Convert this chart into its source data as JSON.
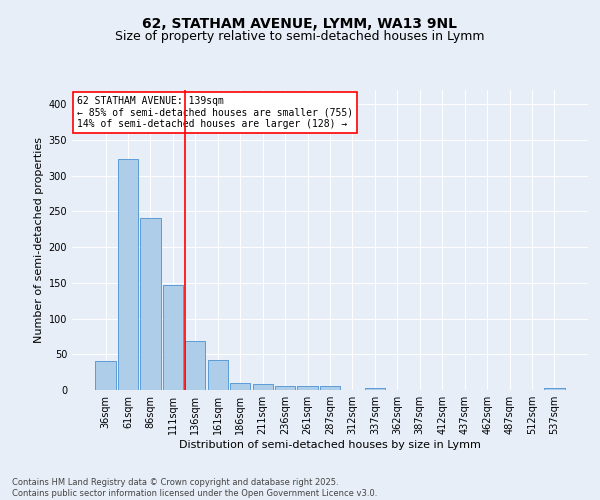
{
  "title_line1": "62, STATHAM AVENUE, LYMM, WA13 9NL",
  "title_line2": "Size of property relative to semi-detached houses in Lymm",
  "xlabel": "Distribution of semi-detached houses by size in Lymm",
  "ylabel": "Number of semi-detached properties",
  "categories": [
    "36sqm",
    "61sqm",
    "86sqm",
    "111sqm",
    "136sqm",
    "161sqm",
    "186sqm",
    "211sqm",
    "236sqm",
    "261sqm",
    "287sqm",
    "312sqm",
    "337sqm",
    "362sqm",
    "387sqm",
    "412sqm",
    "437sqm",
    "462sqm",
    "487sqm",
    "512sqm",
    "537sqm"
  ],
  "values": [
    41,
    323,
    241,
    147,
    68,
    42,
    10,
    8,
    5,
    5,
    6,
    0,
    3,
    0,
    0,
    0,
    0,
    0,
    0,
    0,
    3
  ],
  "bar_color": "#aecde8",
  "bar_edge_color": "#5b9bd5",
  "vline_index": 4,
  "vline_color": "red",
  "annotation_line1": "62 STATHAM AVENUE: 139sqm",
  "annotation_line2": "← 85% of semi-detached houses are smaller (755)",
  "annotation_line3": "14% of semi-detached houses are larger (128) →",
  "annotation_box_facecolor": "white",
  "annotation_box_edgecolor": "red",
  "ylim": [
    0,
    420
  ],
  "yticks": [
    0,
    50,
    100,
    150,
    200,
    250,
    300,
    350,
    400
  ],
  "background_color": "#e8eef7",
  "footer_line1": "Contains HM Land Registry data © Crown copyright and database right 2025.",
  "footer_line2": "Contains public sector information licensed under the Open Government Licence v3.0.",
  "title_fontsize": 10,
  "subtitle_fontsize": 9,
  "axis_label_fontsize": 8,
  "tick_fontsize": 7,
  "annotation_fontsize": 7,
  "footer_fontsize": 6
}
